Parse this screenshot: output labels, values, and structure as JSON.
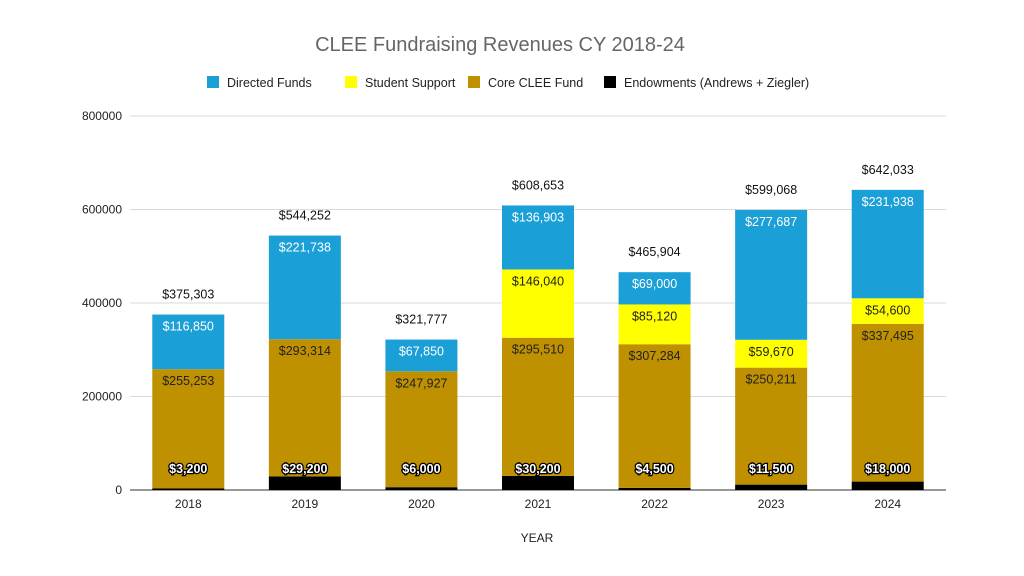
{
  "chart_data": {
    "type": "bar",
    "stacked": true,
    "title": "CLEE Fundraising Revenues CY 2018-24",
    "xlabel": "YEAR",
    "ylabel": "",
    "ylim": [
      0,
      800000
    ],
    "yticks": [
      0,
      200000,
      400000,
      600000,
      800000
    ],
    "ytick_labels": [
      "0",
      "200000",
      "400000",
      "600000",
      "800000"
    ],
    "grid": true,
    "legend_position": "top",
    "categories": [
      "2018",
      "2019",
      "2020",
      "2021",
      "2022",
      "2023",
      "2024"
    ],
    "series": [
      {
        "name": "Endowments (Andrews + Ziegler)",
        "color": "#000000",
        "label_color": "#ffffff",
        "values": [
          3200,
          29200,
          6000,
          30200,
          4500,
          11500,
          18000
        ],
        "labels": [
          "$3,200",
          "$29,200",
          "$6,000",
          "$30,200",
          "$4,500",
          "$11,500",
          "$18,000"
        ]
      },
      {
        "name": "Core CLEE Fund",
        "color": "#bf9000",
        "label_color": "#222222",
        "values": [
          255253,
          293314,
          247927,
          295510,
          307284,
          250211,
          337495
        ],
        "labels": [
          "$255,253",
          "$293,314",
          "$247,927",
          "$295,510",
          "$307,284",
          "$250,211",
          "$337,495"
        ]
      },
      {
        "name": "Student Support",
        "color": "#ffff00",
        "label_color": "#222222",
        "values": [
          0,
          0,
          0,
          146040,
          85120,
          59670,
          54600
        ],
        "labels": [
          "",
          "",
          "",
          "$146,040",
          "$85,120",
          "$59,670",
          "$54,600"
        ]
      },
      {
        "name": "Directed Funds",
        "color": "#1a9fd6",
        "label_color": "#ffffff",
        "values": [
          116850,
          221738,
          67850,
          136903,
          69000,
          277687,
          231938
        ],
        "labels": [
          "$116,850",
          "$221,738",
          "$67,850",
          "$136,903",
          "$69,000",
          "$277,687",
          "$231,938"
        ]
      }
    ],
    "legend_order": [
      "Directed Funds",
      "Student Support",
      "Core CLEE Fund",
      "Endowments (Andrews + Ziegler)"
    ],
    "totals": [
      375303,
      544252,
      321777,
      608653,
      465904,
      599068,
      642033
    ],
    "total_labels": [
      "$375,303",
      "$544,252",
      "$321,777",
      "$608,653",
      "$465,904",
      "$599,068",
      "$642,033"
    ]
  }
}
